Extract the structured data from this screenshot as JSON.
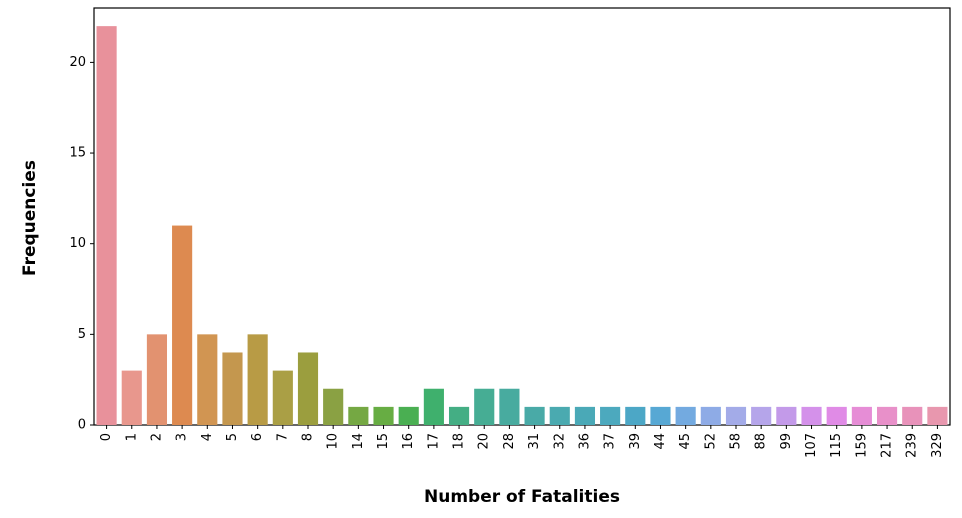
{
  "chart_data": {
    "type": "bar",
    "xlabel": "Number of Fatalities",
    "ylabel": "Frequencies",
    "categories": [
      "0",
      "1",
      "2",
      "3",
      "4",
      "5",
      "6",
      "7",
      "8",
      "10",
      "14",
      "15",
      "16",
      "17",
      "18",
      "20",
      "28",
      "31",
      "32",
      "36",
      "37",
      "39",
      "44",
      "45",
      "52",
      "58",
      "88",
      "99",
      "107",
      "115",
      "159",
      "217",
      "239",
      "329"
    ],
    "values": [
      22,
      3,
      5,
      11,
      5,
      4,
      5,
      3,
      4,
      2,
      1,
      1,
      1,
      2,
      1,
      2,
      2,
      1,
      1,
      1,
      1,
      1,
      1,
      1,
      1,
      1,
      1,
      1,
      1,
      1,
      1,
      1,
      1,
      1
    ],
    "colors": [
      "#e8919b",
      "#e8978d",
      "#e29270",
      "#dd8a50",
      "#d19552",
      "#c4974e",
      "#b89b45",
      "#aa9f45",
      "#9b9e3e",
      "#8aa143",
      "#75a843",
      "#67ad43",
      "#4aaf52",
      "#3fb06d",
      "#44ae84",
      "#46ad94",
      "#48ab9f",
      "#49aaa7",
      "#4aaab0",
      "#4aa9b7",
      "#4ca9be",
      "#4ca7c6",
      "#57a8d4",
      "#73aae0",
      "#8eabe6",
      "#a3abe8",
      "#b5a5ea",
      "#c39ae9",
      "#d491ea",
      "#e08be6",
      "#e68dd6",
      "#e890c9",
      "#e892ba",
      "#e897ae"
    ],
    "ylim": [
      0,
      23
    ],
    "yticks": [
      0,
      5,
      10,
      15,
      20
    ],
    "grid": false,
    "legend": "none"
  }
}
